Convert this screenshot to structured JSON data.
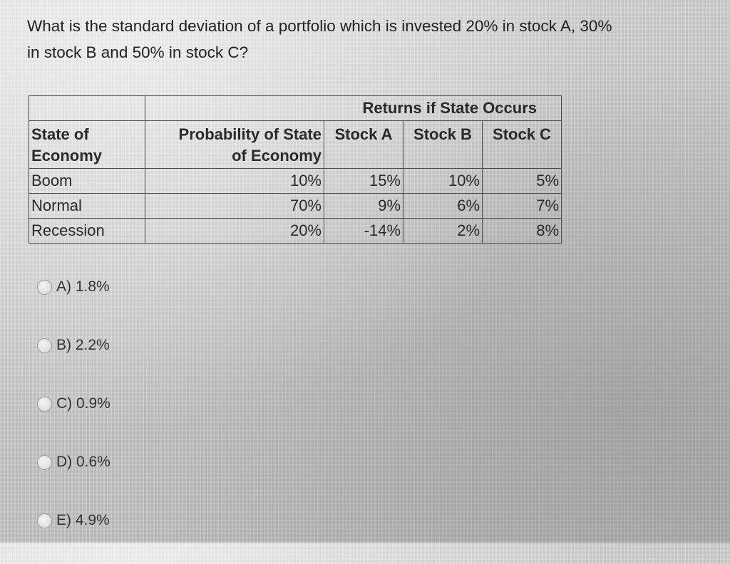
{
  "question": {
    "line1": "What is the standard deviation of a portfolio which is invested 20% in stock A, 30%",
    "line2": "in stock B and 50% in stock C?"
  },
  "table": {
    "group_header": "Returns if State Occurs",
    "headers": {
      "state": [
        "State of",
        "Economy"
      ],
      "probability": [
        "Probability of State",
        "of Economy"
      ],
      "stock_a": "Stock A",
      "stock_b": "Stock B",
      "stock_c": "Stock C"
    },
    "rows": [
      {
        "state": "Boom",
        "probability": "10%",
        "stock_a": "15%",
        "stock_b": "10%",
        "stock_c": "5%"
      },
      {
        "state": "Normal",
        "probability": "70%",
        "stock_a": "9%",
        "stock_b": "6%",
        "stock_c": "7%"
      },
      {
        "state": "Recession",
        "probability": "20%",
        "stock_a": "-14%",
        "stock_b": "2%",
        "stock_c": "8%"
      }
    ]
  },
  "options": [
    {
      "label": "A) 1.8%"
    },
    {
      "label": "B) 2.2%"
    },
    {
      "label": "C) 0.9%"
    },
    {
      "label": "D) 0.6%"
    },
    {
      "label": "E) 4.9%"
    }
  ]
}
